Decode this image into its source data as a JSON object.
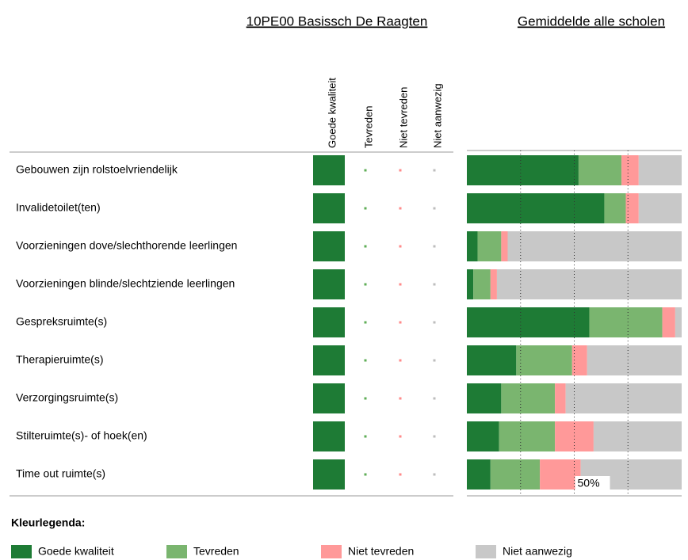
{
  "chart_data": [
    {
      "type": "matrix",
      "title": "10PE00 Basissch De Raagten",
      "categories": [
        "Gebouwen zijn rolstoelvriendelijk",
        "Invalidetoilet(ten)",
        "Voorzieningen dove/slechthorende leerlingen",
        "Voorzieningen blinde/slechtziende leerlingen",
        "Gespreksruimte(s)",
        "Therapieruimte(s)",
        "Verzorgingsruimte(s)",
        "Stilteruimte(s)- of hoek(en)",
        "Time out ruimte(s)"
      ],
      "series": [
        {
          "name": "Goede kwaliteit",
          "color": "#1e7b35",
          "values": [
            100,
            100,
            100,
            100,
            100,
            100,
            100,
            100,
            100
          ]
        },
        {
          "name": "Tevreden",
          "color": "#5fae57",
          "values": [
            0,
            0,
            0,
            0,
            0,
            0,
            0,
            0,
            0
          ]
        },
        {
          "name": "Niet tevreden",
          "color": "#ff8a8a",
          "values": [
            0,
            0,
            0,
            0,
            0,
            0,
            0,
            0,
            0
          ]
        },
        {
          "name": "Niet aanwezig",
          "color": "#bdbdbd",
          "values": [
            0,
            0,
            0,
            0,
            0,
            0,
            0,
            0,
            0
          ]
        }
      ]
    },
    {
      "type": "stackedbar",
      "title": "Gemiddelde alle scholen",
      "legend_title": "Kleurlegenda:",
      "xlim": [
        0,
        100
      ],
      "grid_lines": [
        25,
        50,
        75
      ],
      "xticks": [
        {
          "value": 50,
          "label": "50%"
        }
      ],
      "series": [
        {
          "name": "Goede kwaliteit",
          "color": "#1e7b35",
          "values": [
            52,
            64,
            5,
            3,
            57,
            23,
            16,
            15,
            11
          ]
        },
        {
          "name": "Tevreden",
          "color": "#7ab56f",
          "values": [
            20,
            10,
            11,
            8,
            34,
            26,
            25,
            26,
            23
          ]
        },
        {
          "name": "Niet tevreden",
          "color": "#ff9999",
          "values": [
            8,
            6,
            3,
            3,
            6,
            7,
            5,
            18,
            19
          ]
        },
        {
          "name": "Niet aanwezig",
          "color": "#c8c8c8",
          "values": [
            20,
            20,
            81,
            86,
            3,
            44,
            54,
            41,
            47
          ]
        }
      ]
    }
  ]
}
